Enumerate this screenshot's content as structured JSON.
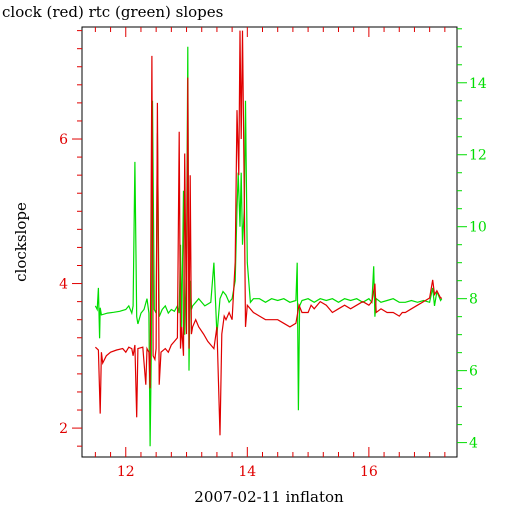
{
  "chart_data": {
    "type": "line",
    "title": "clock (red) rtc (green) slopes",
    "xlabel": "2007-02-11 inflaton",
    "ylabel": "clockslope",
    "xlim": [
      11.28,
      17.45
    ],
    "ylim_left": [
      1.6,
      7.55
    ],
    "ylim_right": [
      3.6,
      15.55
    ],
    "x_ticks": [
      12,
      14,
      16
    ],
    "y_ticks_left": [
      2,
      4,
      6
    ],
    "y_ticks_right": [
      4,
      6,
      8,
      10,
      12,
      14
    ],
    "grid": false,
    "colors": {
      "clock": "#e00000",
      "rtc": "#00dd00",
      "frame": "#000000"
    },
    "series": [
      {
        "name": "clock",
        "axis": "left",
        "color": "#e00000",
        "points": [
          [
            11.5,
            3.12
          ],
          [
            11.55,
            3.08
          ],
          [
            11.58,
            2.2
          ],
          [
            11.6,
            3.05
          ],
          [
            11.62,
            2.9
          ],
          [
            11.68,
            3.0
          ],
          [
            11.75,
            3.05
          ],
          [
            11.85,
            3.08
          ],
          [
            11.95,
            3.1
          ],
          [
            12.0,
            3.05
          ],
          [
            12.05,
            3.12
          ],
          [
            12.1,
            3.1
          ],
          [
            12.12,
            3.0
          ],
          [
            12.15,
            3.15
          ],
          [
            12.18,
            2.15
          ],
          [
            12.2,
            3.1
          ],
          [
            12.28,
            3.12
          ],
          [
            12.33,
            2.6
          ],
          [
            12.35,
            3.1
          ],
          [
            12.38,
            3.05
          ],
          [
            12.4,
            2.55
          ],
          [
            12.43,
            7.15
          ],
          [
            12.45,
            3.0
          ],
          [
            12.48,
            2.95
          ],
          [
            12.5,
            3.1
          ],
          [
            12.52,
            6.5
          ],
          [
            12.55,
            2.6
          ],
          [
            12.58,
            3.05
          ],
          [
            12.65,
            3.1
          ],
          [
            12.7,
            3.05
          ],
          [
            12.75,
            3.15
          ],
          [
            12.8,
            3.2
          ],
          [
            12.85,
            3.25
          ],
          [
            12.88,
            6.1
          ],
          [
            12.9,
            3.1
          ],
          [
            12.92,
            3.4
          ],
          [
            12.95,
            3.0
          ],
          [
            12.97,
            5.8
          ],
          [
            13.0,
            3.3
          ],
          [
            13.02,
            6.85
          ],
          [
            13.04,
            3.1
          ],
          [
            13.06,
            5.5
          ],
          [
            13.08,
            3.3
          ],
          [
            13.1,
            3.4
          ],
          [
            13.15,
            3.5
          ],
          [
            13.2,
            3.4
          ],
          [
            13.28,
            3.3
          ],
          [
            13.35,
            3.2
          ],
          [
            13.45,
            3.1
          ],
          [
            13.5,
            3.4
          ],
          [
            13.55,
            1.9
          ],
          [
            13.58,
            3.3
          ],
          [
            13.62,
            3.55
          ],
          [
            13.65,
            3.5
          ],
          [
            13.7,
            3.6
          ],
          [
            13.75,
            3.5
          ],
          [
            13.8,
            4.3
          ],
          [
            13.83,
            6.4
          ],
          [
            13.86,
            5.5
          ],
          [
            13.88,
            7.5
          ],
          [
            13.9,
            6.0
          ],
          [
            13.92,
            7.5
          ],
          [
            13.95,
            5.2
          ],
          [
            13.97,
            3.4
          ],
          [
            14.0,
            3.7
          ],
          [
            14.1,
            3.6
          ],
          [
            14.2,
            3.55
          ],
          [
            14.3,
            3.5
          ],
          [
            14.4,
            3.5
          ],
          [
            14.5,
            3.5
          ],
          [
            14.6,
            3.45
          ],
          [
            14.7,
            3.4
          ],
          [
            14.8,
            3.45
          ],
          [
            14.85,
            3.7
          ],
          [
            14.9,
            3.6
          ],
          [
            15.0,
            3.6
          ],
          [
            15.05,
            3.7
          ],
          [
            15.1,
            3.65
          ],
          [
            15.15,
            3.7
          ],
          [
            15.2,
            3.75
          ],
          [
            15.3,
            3.7
          ],
          [
            15.4,
            3.6
          ],
          [
            15.5,
            3.65
          ],
          [
            15.6,
            3.7
          ],
          [
            15.7,
            3.65
          ],
          [
            15.8,
            3.7
          ],
          [
            15.9,
            3.75
          ],
          [
            16.0,
            3.7
          ],
          [
            16.05,
            3.75
          ],
          [
            16.1,
            4.0
          ],
          [
            16.12,
            3.6
          ],
          [
            16.2,
            3.65
          ],
          [
            16.3,
            3.6
          ],
          [
            16.4,
            3.6
          ],
          [
            16.5,
            3.55
          ],
          [
            16.55,
            3.6
          ],
          [
            16.6,
            3.6
          ],
          [
            16.7,
            3.65
          ],
          [
            16.8,
            3.7
          ],
          [
            16.9,
            3.75
          ],
          [
            17.0,
            3.8
          ],
          [
            17.05,
            4.05
          ],
          [
            17.08,
            3.85
          ],
          [
            17.12,
            3.9
          ],
          [
            17.18,
            3.8
          ],
          [
            17.2,
            3.8
          ]
        ]
      },
      {
        "name": "rtc",
        "axis": "right",
        "color": "#00dd00",
        "points": [
          [
            11.5,
            7.8
          ],
          [
            11.53,
            7.7
          ],
          [
            11.55,
            8.3
          ],
          [
            11.57,
            6.9
          ],
          [
            11.58,
            7.75
          ],
          [
            11.6,
            7.55
          ],
          [
            11.7,
            7.6
          ],
          [
            11.8,
            7.62
          ],
          [
            11.9,
            7.65
          ],
          [
            12.0,
            7.7
          ],
          [
            12.05,
            7.8
          ],
          [
            12.1,
            7.6
          ],
          [
            12.12,
            7.8
          ],
          [
            12.15,
            11.8
          ],
          [
            12.18,
            7.5
          ],
          [
            12.2,
            7.3
          ],
          [
            12.25,
            7.6
          ],
          [
            12.3,
            7.7
          ],
          [
            12.35,
            8.0
          ],
          [
            12.38,
            7.6
          ],
          [
            12.4,
            3.9
          ],
          [
            12.42,
            6.5
          ],
          [
            12.44,
            13.5
          ],
          [
            12.47,
            7.7
          ],
          [
            12.5,
            7.6
          ],
          [
            12.52,
            12.6
          ],
          [
            12.55,
            7.5
          ],
          [
            12.6,
            7.7
          ],
          [
            12.65,
            7.8
          ],
          [
            12.7,
            7.6
          ],
          [
            12.75,
            7.7
          ],
          [
            12.8,
            7.65
          ],
          [
            12.85,
            7.8
          ],
          [
            12.88,
            7.6
          ],
          [
            12.9,
            9.5
          ],
          [
            12.92,
            7.2
          ],
          [
            12.95,
            11.0
          ],
          [
            12.97,
            7.0
          ],
          [
            13.0,
            9.0
          ],
          [
            13.02,
            15.0
          ],
          [
            13.04,
            6.0
          ],
          [
            13.06,
            8.5
          ],
          [
            13.08,
            7.7
          ],
          [
            13.1,
            7.8
          ],
          [
            13.15,
            7.9
          ],
          [
            13.2,
            8.0
          ],
          [
            13.3,
            7.8
          ],
          [
            13.4,
            7.9
          ],
          [
            13.45,
            9.0
          ],
          [
            13.5,
            7.0
          ],
          [
            13.55,
            8.0
          ],
          [
            13.6,
            8.2
          ],
          [
            13.65,
            8.1
          ],
          [
            13.7,
            7.9
          ],
          [
            13.75,
            8.0
          ],
          [
            13.8,
            8.5
          ],
          [
            13.83,
            10.5
          ],
          [
            13.85,
            11.5
          ],
          [
            13.88,
            10.0
          ],
          [
            13.9,
            11.5
          ],
          [
            13.92,
            9.5
          ],
          [
            13.95,
            10.5
          ],
          [
            13.97,
            13.5
          ],
          [
            14.0,
            9.0
          ],
          [
            14.05,
            7.9
          ],
          [
            14.1,
            8.0
          ],
          [
            14.2,
            8.0
          ],
          [
            14.3,
            7.9
          ],
          [
            14.4,
            8.0
          ],
          [
            14.5,
            7.95
          ],
          [
            14.6,
            8.0
          ],
          [
            14.7,
            7.9
          ],
          [
            14.8,
            7.95
          ],
          [
            14.82,
            9.0
          ],
          [
            14.84,
            4.9
          ],
          [
            14.86,
            7.8
          ],
          [
            14.9,
            7.95
          ],
          [
            15.0,
            8.0
          ],
          [
            15.1,
            7.9
          ],
          [
            15.2,
            8.0
          ],
          [
            15.3,
            7.95
          ],
          [
            15.4,
            8.0
          ],
          [
            15.5,
            7.9
          ],
          [
            15.6,
            8.0
          ],
          [
            15.7,
            7.95
          ],
          [
            15.8,
            8.0
          ],
          [
            15.9,
            7.9
          ],
          [
            16.0,
            8.0
          ],
          [
            16.05,
            7.9
          ],
          [
            16.08,
            8.9
          ],
          [
            16.1,
            7.5
          ],
          [
            16.12,
            8.0
          ],
          [
            16.2,
            7.9
          ],
          [
            16.3,
            7.95
          ],
          [
            16.4,
            8.0
          ],
          [
            16.5,
            7.9
          ],
          [
            16.6,
            7.9
          ],
          [
            16.7,
            7.95
          ],
          [
            16.8,
            7.9
          ],
          [
            16.9,
            7.95
          ],
          [
            17.0,
            7.9
          ],
          [
            17.05,
            8.3
          ],
          [
            17.08,
            7.8
          ],
          [
            17.12,
            8.2
          ],
          [
            17.18,
            7.95
          ],
          [
            17.2,
            8.0
          ]
        ]
      }
    ]
  }
}
